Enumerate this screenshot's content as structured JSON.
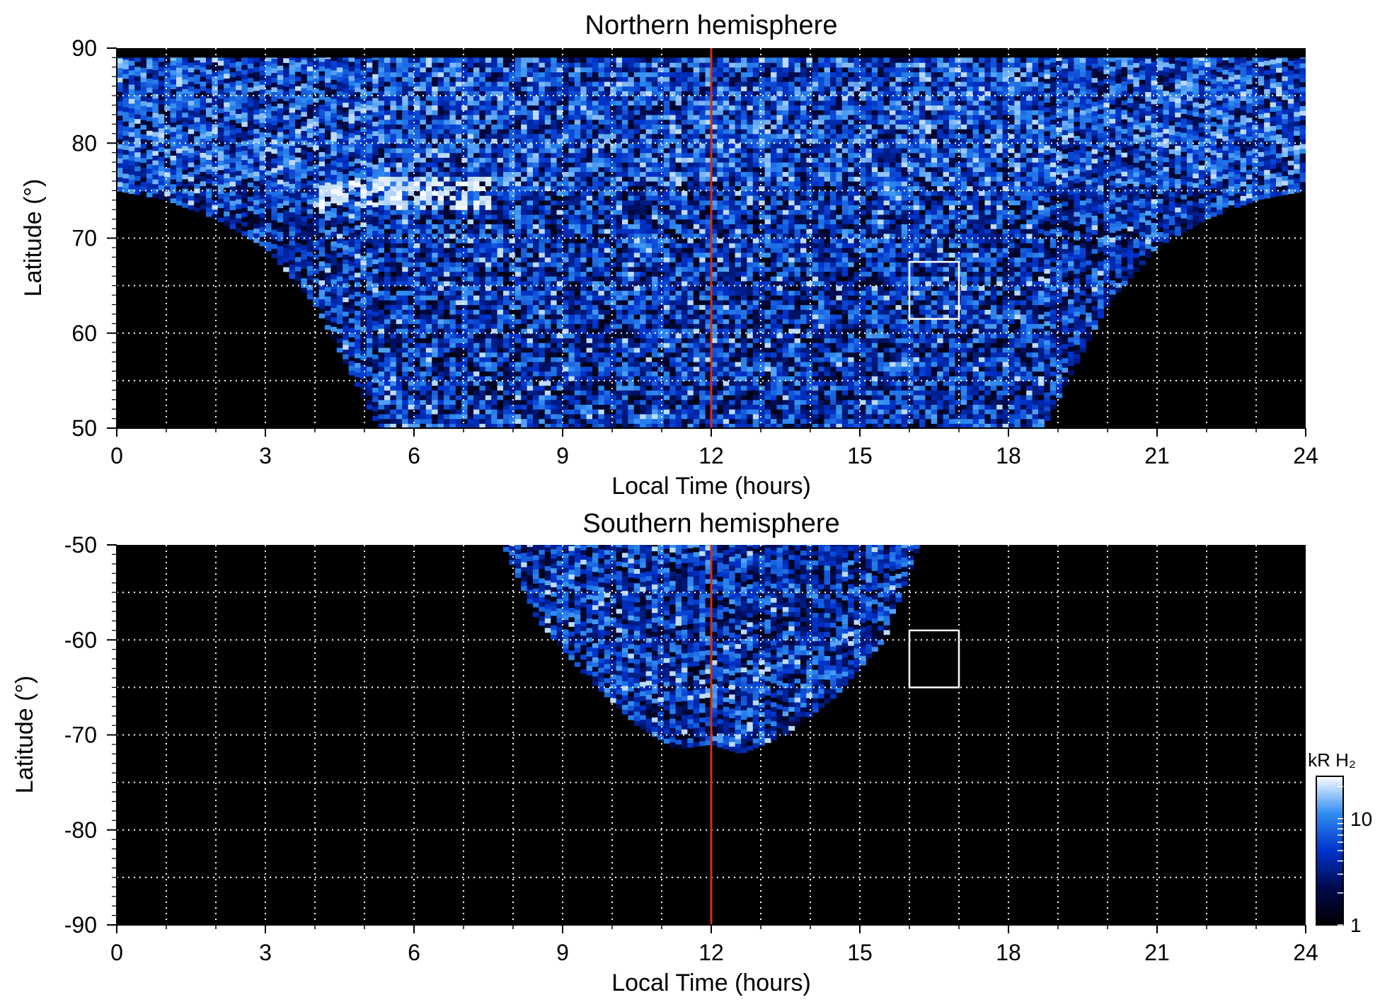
{
  "chart_data": [
    {
      "type": "heatmap",
      "title": "Northern hemisphere",
      "xlabel": "Local Time (hours)",
      "ylabel": "Latitude (°)",
      "xlim": [
        0,
        24
      ],
      "ylim": [
        50,
        90
      ],
      "x_ticks": [
        "0",
        "3",
        "6",
        "9",
        "12",
        "15",
        "18",
        "21",
        "24"
      ],
      "y_ticks": [
        "50",
        "60",
        "70",
        "80",
        "90"
      ],
      "grid": true,
      "reference_line": {
        "x": 12,
        "color": "#cc3311"
      },
      "highlight_box": {
        "x": [
          16,
          17
        ],
        "y": [
          61.5,
          67.5
        ]
      },
      "coverage": {
        "description_free_shape": "u-shaped",
        "edge_points": [
          [
            0,
            75
          ],
          [
            1,
            74
          ],
          [
            2,
            72
          ],
          [
            3,
            69
          ],
          [
            4,
            63
          ],
          [
            5,
            53
          ],
          [
            5.3,
            50
          ],
          [
            18.7,
            50
          ],
          [
            19,
            53
          ],
          [
            20,
            63
          ],
          [
            21,
            69
          ],
          [
            22,
            72
          ],
          [
            23,
            74
          ],
          [
            24,
            75
          ]
        ],
        "top_lat": 89
      },
      "bright_feature": {
        "lt": [
          4,
          7.5
        ],
        "lat": [
          73,
          76
        ]
      }
    },
    {
      "type": "heatmap",
      "title": "Southern hemisphere",
      "xlabel": "Local Time (hours)",
      "ylabel": "Latitude (°)",
      "xlim": [
        0,
        24
      ],
      "ylim": [
        -90,
        -50
      ],
      "x_ticks": [
        "0",
        "3",
        "6",
        "9",
        "12",
        "15",
        "18",
        "21",
        "24"
      ],
      "y_ticks": [
        "-50",
        "-60",
        "-70",
        "-80",
        "-90"
      ],
      "grid": true,
      "reference_line": {
        "x": 12,
        "color": "#cc3311"
      },
      "highlight_box": {
        "x": [
          16,
          17
        ],
        "y": [
          -65,
          -59
        ]
      },
      "coverage": {
        "edge_points": [
          [
            7.8,
            -50
          ],
          [
            8.5,
            -58
          ],
          [
            9.5,
            -64
          ],
          [
            10.5,
            -69
          ],
          [
            11.3,
            -71.5
          ],
          [
            12,
            -71
          ],
          [
            12.6,
            -72
          ],
          [
            13.5,
            -70
          ],
          [
            14.5,
            -66
          ],
          [
            15.5,
            -60
          ],
          [
            16.2,
            -50
          ]
        ]
      }
    }
  ],
  "colorbar": {
    "label": "kR H₂",
    "scale": "log",
    "range": [
      1,
      25
    ],
    "tick_labels": [
      "1",
      "10"
    ],
    "colors": [
      "#000000",
      "#000a4d",
      "#0033cc",
      "#2f8cf0",
      "#ffffff"
    ]
  }
}
